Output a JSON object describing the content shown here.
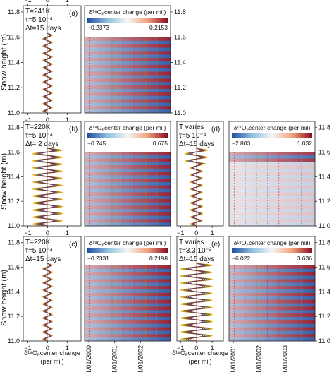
{
  "chart_data": {
    "type": "line",
    "ylabel": "Snow height (m)",
    "yticks": [
      "11.0",
      "11.2",
      "11.4",
      "11.6",
      "11.8"
    ],
    "ylim": [
      11.0,
      11.85
    ],
    "profile_xticks": [
      "−1",
      "0",
      "1"
    ],
    "profile_xlabel": [
      "δ¹⁸Oₚcenter change",
      "(per mil)"
    ],
    "date_ticks": [
      "01/01/2000",
      "01/01/2001",
      "01/01/2002"
    ],
    "date_ticks_right": [
      "01/01/2001",
      "01/01/2002",
      "01/01/2003"
    ],
    "colormap": {
      "low": "#1f4e9e",
      "mid": "#f5f5f5",
      "high": "#8b0a1e"
    },
    "colorbar_title": "δ¹⁸Oₚcenter change (per mil)",
    "panels": [
      {
        "id": "a",
        "label": "(a)",
        "params": [
          "T=241K",
          "τ=5 10⁻⁴",
          "Δt=15 days"
        ],
        "profile_amplitude": 0.25,
        "cbar_min": "−0.2373",
        "cbar_max": "0.2153",
        "layers": 11,
        "regime": "accumulation"
      },
      {
        "id": "b",
        "label": "(b)",
        "params": [
          "T=220K",
          "τ=5 10⁻⁴",
          "Δt=  2 days"
        ],
        "profile_amplitude": 0.75,
        "cbar_min": "−0.745",
        "cbar_max": "0.675",
        "layers": 11,
        "regime": "accumulation"
      },
      {
        "id": "c",
        "label": "(c)",
        "params": [
          "T=220K",
          "τ=5 10⁻⁴",
          "Δt=15 days"
        ],
        "profile_amplitude": 0.25,
        "cbar_min": "−0.2331",
        "cbar_max": "0.2198",
        "layers": 11,
        "regime": "accumulation"
      },
      {
        "id": "d",
        "label": "(d)",
        "params": [
          "T varies",
          "τ=5 10⁻⁴",
          "Δt=15 days"
        ],
        "profile_amplitude": 0.7,
        "cbar_min": "−2.803",
        "cbar_max": "1.032",
        "layers": 11,
        "regime": "surface"
      },
      {
        "id": "e",
        "label": "(e)",
        "params": [
          "T varies",
          "τ=3.3 10⁻²",
          "Δt=15 days"
        ],
        "profile_amplitude": 1.0,
        "cbar_min": "−6.022",
        "cbar_max": "3.636",
        "layers": 11,
        "regime": "accumulation"
      }
    ]
  }
}
